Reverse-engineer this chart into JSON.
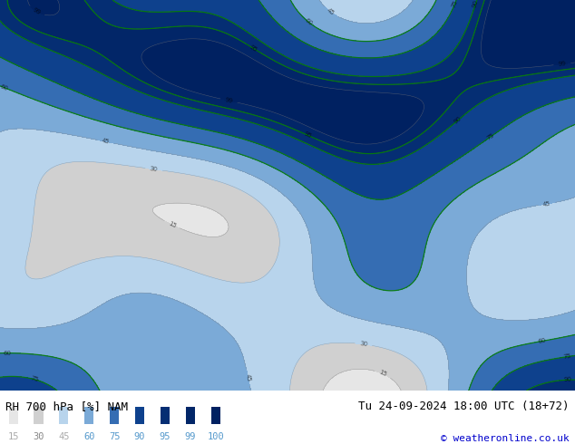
{
  "title_left": "RH 700 hPa [%] NAM",
  "title_right": "Tu 24-09-2024 18:00 UTC (18+72)",
  "copyright": "© weatheronline.co.uk",
  "legend_values": [
    15,
    30,
    45,
    60,
    75,
    90,
    95,
    99,
    100
  ],
  "legend_text_colors": [
    "#aaaaaa",
    "#888888",
    "#aaaaaa",
    "#5599cc",
    "#5599cc",
    "#5599cc",
    "#5599cc",
    "#5599cc",
    "#5599cc"
  ],
  "cmap_colors": [
    "#f0f0f0",
    "#e0e0e0",
    "#cccccc",
    "#b8d4ec",
    "#88b4dc",
    "#4880c0",
    "#1850a0",
    "#083880",
    "#002060"
  ],
  "levels": [
    0,
    15,
    30,
    45,
    60,
    75,
    90,
    95,
    99,
    100
  ],
  "contour_levels": [
    15,
    30,
    45,
    60,
    75,
    90,
    95,
    99
  ],
  "green_levels": [
    60,
    75,
    90,
    95
  ],
  "background_color": "#ffffff",
  "map_bg": "#c8dff0",
  "fig_width": 6.34,
  "fig_height": 4.9,
  "title_fontsize": 9,
  "legend_fontsize": 7.5,
  "copyright_fontsize": 8
}
